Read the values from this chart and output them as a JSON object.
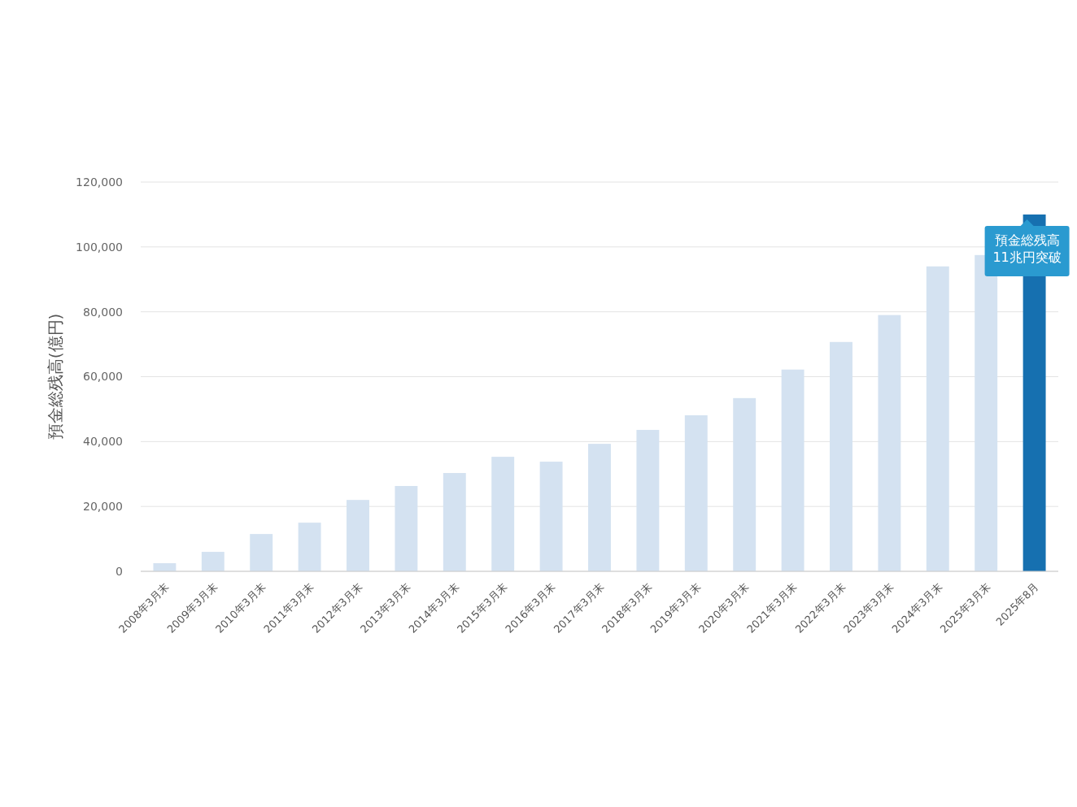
{
  "chart_data": {
    "type": "bar",
    "ylabel": "預金総残高(億円)",
    "categories": [
      "2008年3月末",
      "2009年3月末",
      "2010年3月末",
      "2011年3月末",
      "2012年3月末",
      "2013年3月末",
      "2014年3月末",
      "2015年3月末",
      "2016年3月末",
      "2017年3月末",
      "2018年3月末",
      "2019年3月末",
      "2020年3月末",
      "2021年3月末",
      "2022年3月末",
      "2023年3月末",
      "2024年3月末",
      "2025年3月末",
      "2025年8月"
    ],
    "values": [
      2500,
      6000,
      11500,
      15000,
      22000,
      26300,
      30300,
      35300,
      33800,
      39300,
      43600,
      48100,
      53400,
      62200,
      70700,
      79000,
      94000,
      97500,
      110000
    ],
    "colors": [
      "#d4e2f1",
      "#d4e2f1",
      "#d4e2f1",
      "#d4e2f1",
      "#d4e2f1",
      "#d4e2f1",
      "#d4e2f1",
      "#d4e2f1",
      "#d4e2f1",
      "#d4e2f1",
      "#d4e2f1",
      "#d4e2f1",
      "#d4e2f1",
      "#d4e2f1",
      "#d4e2f1",
      "#d4e2f1",
      "#d4e2f1",
      "#d4e2f1",
      "#1670b0"
    ],
    "ylim": [
      0,
      120000
    ],
    "yticks": [
      {
        "value": 0,
        "label": "0"
      },
      {
        "value": 20000,
        "label": "20,000"
      },
      {
        "value": 40000,
        "label": "40,000"
      },
      {
        "value": 60000,
        "label": "60,000"
      },
      {
        "value": 80000,
        "label": "80,000"
      },
      {
        "value": 100000,
        "label": "100,000"
      },
      {
        "value": 120000,
        "label": "120,000"
      }
    ],
    "grid": "y",
    "annotations": [
      {
        "text": "預金総残高\n11兆円突破",
        "x": "2025年8月",
        "y": 110000
      }
    ]
  }
}
